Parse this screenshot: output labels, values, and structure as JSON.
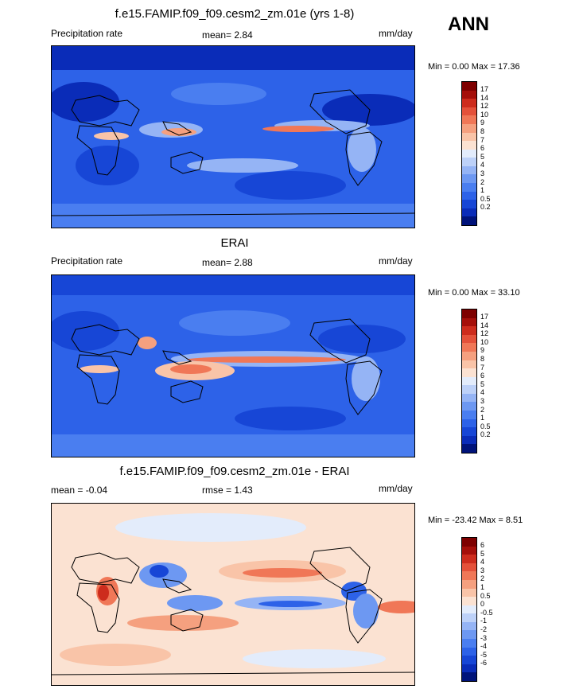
{
  "season": "ANN",
  "palette_abs": [
    "#00137a",
    "#0a2cb8",
    "#1746d6",
    "#2d62e8",
    "#4a7ef0",
    "#6d98f2",
    "#95b4f5",
    "#bdd1f8",
    "#e3ecfb",
    "#fbe2d2",
    "#f9c4a8",
    "#f5a07f",
    "#f07757",
    "#e4513a",
    "#cd2c1d",
    "#a50f0a",
    "#7e0000"
  ],
  "palette_diff": [
    "#00137a",
    "#0a2cb8",
    "#1746d6",
    "#2d62e8",
    "#4a7ef0",
    "#6d98f2",
    "#95b4f5",
    "#bdd1f8",
    "#e3ecfb",
    "#fbe2d2",
    "#f9c4a8",
    "#f5a07f",
    "#f07757",
    "#e4513a",
    "#cd2c1d",
    "#a50f0a",
    "#7e0000"
  ],
  "panels": [
    {
      "title": "f.e15.FAMIP.f09_f09.cesm2_zm.01e (yrs 1-8)",
      "left_label": "Precipitation rate",
      "center_label": "mean=   2.84",
      "units": "mm/day",
      "minmax": "Min =   0.00 Max =  17.36",
      "ticks": [
        "17",
        "14",
        "12",
        "10",
        "9",
        "8",
        "7",
        "6",
        "5",
        "4",
        "3",
        "2",
        "1",
        "0.5",
        "0.2"
      ],
      "type": "abs"
    },
    {
      "title": "ERAI",
      "left_label": "Precipitation rate",
      "center_label": "mean=   2.88",
      "units": "mm/day",
      "minmax": "Min =   0.00 Max =  33.10",
      "ticks": [
        "17",
        "14",
        "12",
        "10",
        "9",
        "8",
        "7",
        "6",
        "5",
        "4",
        "3",
        "2",
        "1",
        "0.5",
        "0.2"
      ],
      "type": "abs"
    },
    {
      "title": "f.e15.FAMIP.f09_f09.cesm2_zm.01e - ERAI",
      "left_label": "mean = -0.04",
      "center_label": "rmse =   1.43",
      "units": "mm/day",
      "minmax": "Min = -23.42 Max =   8.51",
      "ticks": [
        "6",
        "5",
        "4",
        "3",
        "2",
        "1",
        "0.5",
        "0",
        "-0.5",
        "-1",
        "-2",
        "-3",
        "-4",
        "-5",
        "-6"
      ],
      "type": "diff"
    }
  ]
}
